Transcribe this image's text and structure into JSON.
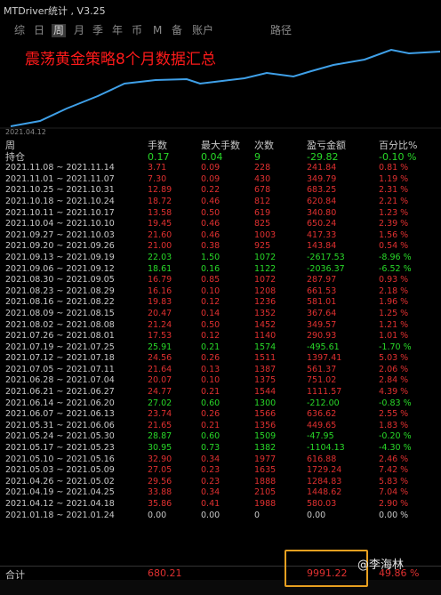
{
  "app_title": "MTDriver统计 , V3.25",
  "tabs": [
    "综",
    "日",
    "周",
    "月",
    "季",
    "年",
    "币",
    "M",
    "备",
    "账户",
    "路径"
  ],
  "active_tab": "周",
  "chart": {
    "label": "震荡黄金策略8个月数据汇总",
    "date": "2021.04.12",
    "line_color": "#3fa0e8"
  },
  "table": {
    "headers": [
      "周",
      "手数",
      "最大手数",
      "次数",
      "盈亏金额",
      "百分比%"
    ],
    "holding": {
      "label": "持仓",
      "lots": "0.17",
      "max": "0.04",
      "count": "9",
      "pl": "-29.82",
      "pct": "-0.10 %"
    },
    "rows": [
      {
        "period": "2021.11.08 ~ 2021.11.14",
        "lots": "3.71",
        "max": "0.09",
        "count": "228",
        "pl": "241.84",
        "pct": "0.81 %",
        "sign": "pos"
      },
      {
        "period": "2021.11.01 ~ 2021.11.07",
        "lots": "7.30",
        "max": "0.09",
        "count": "430",
        "pl": "349.79",
        "pct": "1.19 %",
        "sign": "pos"
      },
      {
        "period": "2021.10.25 ~ 2021.10.31",
        "lots": "12.89",
        "max": "0.22",
        "count": "678",
        "pl": "683.25",
        "pct": "2.31 %",
        "sign": "pos"
      },
      {
        "period": "2021.10.18 ~ 2021.10.24",
        "lots": "18.72",
        "max": "0.46",
        "count": "812",
        "pl": "620.84",
        "pct": "2.21 %",
        "sign": "pos"
      },
      {
        "period": "2021.10.11 ~ 2021.10.17",
        "lots": "13.58",
        "max": "0.50",
        "count": "619",
        "pl": "340.80",
        "pct": "1.23 %",
        "sign": "pos"
      },
      {
        "period": "2021.10.04 ~ 2021.10.10",
        "lots": "19.45",
        "max": "0.46",
        "count": "825",
        "pl": "650.24",
        "pct": "2.39 %",
        "sign": "pos"
      },
      {
        "period": "2021.09.27 ~ 2021.10.03",
        "lots": "21.60",
        "max": "0.46",
        "count": "1003",
        "pl": "417.33",
        "pct": "1.56 %",
        "sign": "pos"
      },
      {
        "period": "2021.09.20 ~ 2021.09.26",
        "lots": "21.00",
        "max": "0.38",
        "count": "925",
        "pl": "143.84",
        "pct": "0.54 %",
        "sign": "pos"
      },
      {
        "period": "2021.09.13 ~ 2021.09.19",
        "lots": "22.03",
        "max": "1.50",
        "count": "1072",
        "pl": "-2617.53",
        "pct": "-8.96 %",
        "sign": "neg"
      },
      {
        "period": "2021.09.06 ~ 2021.09.12",
        "lots": "18.61",
        "max": "0.16",
        "count": "1122",
        "pl": "-2036.37",
        "pct": "-6.52 %",
        "sign": "neg"
      },
      {
        "period": "2021.08.30 ~ 2021.09.05",
        "lots": "16.79",
        "max": "0.85",
        "count": "1072",
        "pl": "287.97",
        "pct": "0.93 %",
        "sign": "pos"
      },
      {
        "period": "2021.08.23 ~ 2021.08.29",
        "lots": "16.16",
        "max": "0.10",
        "count": "1208",
        "pl": "661.53",
        "pct": "2.18 %",
        "sign": "pos"
      },
      {
        "period": "2021.08.16 ~ 2021.08.22",
        "lots": "19.83",
        "max": "0.12",
        "count": "1236",
        "pl": "581.01",
        "pct": "1.96 %",
        "sign": "pos"
      },
      {
        "period": "2021.08.09 ~ 2021.08.15",
        "lots": "20.47",
        "max": "0.14",
        "count": "1352",
        "pl": "367.64",
        "pct": "1.25 %",
        "sign": "pos"
      },
      {
        "period": "2021.08.02 ~ 2021.08.08",
        "lots": "21.24",
        "max": "0.50",
        "count": "1452",
        "pl": "349.57",
        "pct": "1.21 %",
        "sign": "pos"
      },
      {
        "period": "2021.07.26 ~ 2021.08.01",
        "lots": "17.53",
        "max": "0.12",
        "count": "1140",
        "pl": "290.93",
        "pct": "1.01 %",
        "sign": "pos"
      },
      {
        "period": "2021.07.19 ~ 2021.07.25",
        "lots": "25.91",
        "max": "0.21",
        "count": "1574",
        "pl": "-495.61",
        "pct": "-1.70 %",
        "sign": "neg"
      },
      {
        "period": "2021.07.12 ~ 2021.07.18",
        "lots": "24.56",
        "max": "0.26",
        "count": "1511",
        "pl": "1397.41",
        "pct": "5.03 %",
        "sign": "pos"
      },
      {
        "period": "2021.07.05 ~ 2021.07.11",
        "lots": "21.64",
        "max": "0.13",
        "count": "1387",
        "pl": "561.37",
        "pct": "2.06 %",
        "sign": "pos"
      },
      {
        "period": "2021.06.28 ~ 2021.07.04",
        "lots": "20.07",
        "max": "0.10",
        "count": "1375",
        "pl": "751.02",
        "pct": "2.84 %",
        "sign": "pos"
      },
      {
        "period": "2021.06.21 ~ 2021.06.27",
        "lots": "24.77",
        "max": "0.21",
        "count": "1544",
        "pl": "1111.57",
        "pct": "4.39 %",
        "sign": "pos"
      },
      {
        "period": "2021.06.14 ~ 2021.06.20",
        "lots": "27.02",
        "max": "0.60",
        "count": "1300",
        "pl": "-212.00",
        "pct": "-0.83 %",
        "sign": "neg"
      },
      {
        "period": "2021.06.07 ~ 2021.06.13",
        "lots": "23.74",
        "max": "0.26",
        "count": "1566",
        "pl": "636.62",
        "pct": "2.55 %",
        "sign": "pos"
      },
      {
        "period": "2021.05.31 ~ 2021.06.06",
        "lots": "21.65",
        "max": "0.21",
        "count": "1356",
        "pl": "449.65",
        "pct": "1.83 %",
        "sign": "pos"
      },
      {
        "period": "2021.05.24 ~ 2021.05.30",
        "lots": "28.87",
        "max": "0.60",
        "count": "1509",
        "pl": "-47.95",
        "pct": "-0.20 %",
        "sign": "neg"
      },
      {
        "period": "2021.05.17 ~ 2021.05.23",
        "lots": "30.95",
        "max": "0.73",
        "count": "1382",
        "pl": "-1104.13",
        "pct": "-4.30 %",
        "sign": "neg"
      },
      {
        "period": "2021.05.10 ~ 2021.05.16",
        "lots": "32.90",
        "max": "0.34",
        "count": "1977",
        "pl": "616.88",
        "pct": "2.46 %",
        "sign": "pos"
      },
      {
        "period": "2021.05.03 ~ 2021.05.09",
        "lots": "27.05",
        "max": "0.23",
        "count": "1635",
        "pl": "1729.24",
        "pct": "7.42 %",
        "sign": "pos"
      },
      {
        "period": "2021.04.26 ~ 2021.05.02",
        "lots": "29.56",
        "max": "0.23",
        "count": "1888",
        "pl": "1284.83",
        "pct": "5.83 %",
        "sign": "pos"
      },
      {
        "period": "2021.04.19 ~ 2021.04.25",
        "lots": "33.88",
        "max": "0.34",
        "count": "2105",
        "pl": "1448.62",
        "pct": "7.04 %",
        "sign": "pos"
      },
      {
        "period": "2021.04.12 ~ 2021.04.18",
        "lots": "35.86",
        "max": "0.41",
        "count": "1988",
        "pl": "580.03",
        "pct": "2.90 %",
        "sign": "pos"
      },
      {
        "period": "2021.01.18 ~ 2021.01.24",
        "lots": "0.00",
        "max": "0.00",
        "count": "0",
        "pl": "0.00",
        "pct": "0.00 %",
        "sign": "zero"
      }
    ],
    "total": {
      "label": "合计",
      "lots": "680.21",
      "pl": "9991.22",
      "pct": "49.86 %"
    }
  },
  "watermark": "@李海林",
  "highlight_color": "#e8a020"
}
